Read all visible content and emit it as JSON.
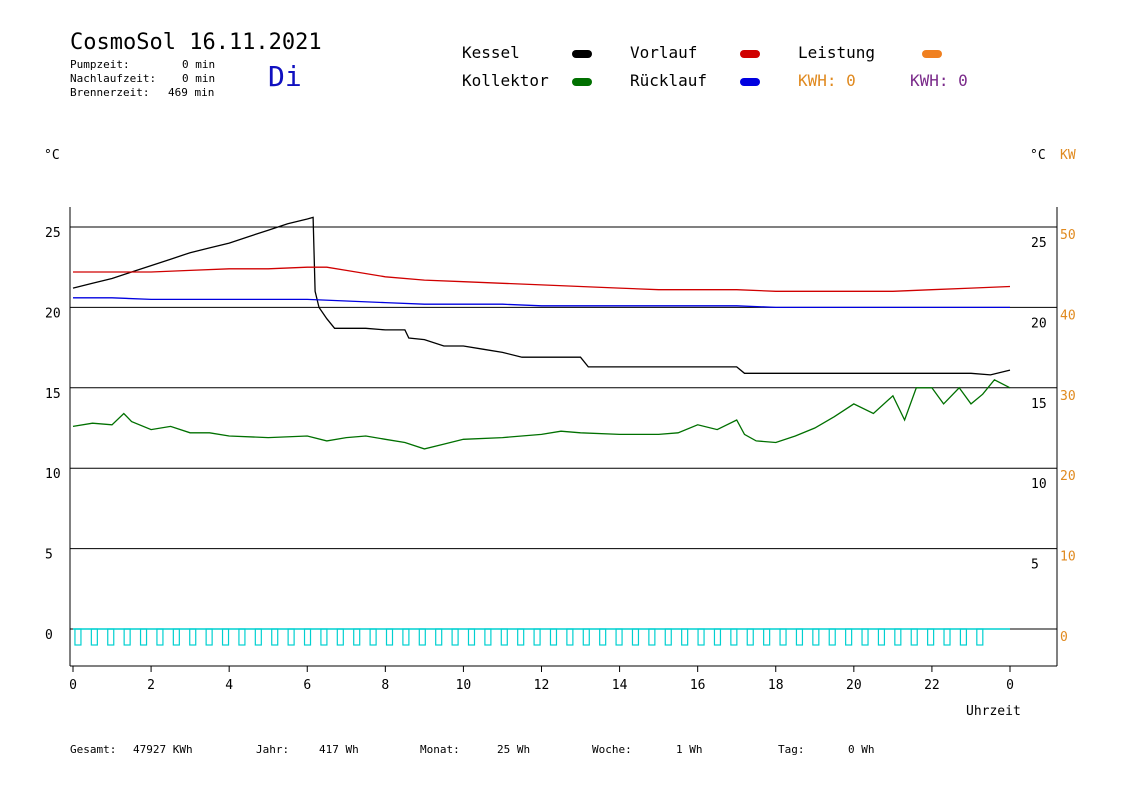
{
  "header": {
    "title": "CosmoSol 16.11.2021",
    "pumpzeit_label": "Pumpzeit:",
    "pumpzeit_value": "0 min",
    "nachlauf_label": "Nachlaufzeit:",
    "nachlauf_value": "0 min",
    "brenner_label": "Brennerzeit:",
    "brenner_value": "469 min",
    "weekday": "Di"
  },
  "legend": {
    "kessel": "Kessel",
    "kollektor": "Kollektor",
    "vorlauf": "Vorlauf",
    "ruecklauf": "Rücklauf",
    "leistung": "Leistung",
    "kwh1": "KWH: 0",
    "kwh2": "KWH: 0"
  },
  "colors": {
    "kessel": "#000000",
    "kollektor": "#007000",
    "vorlauf": "#d00000",
    "ruecklauf": "#0000e0",
    "leistung": "#f08020",
    "pump": "#00d0d0",
    "kwh_orange": "#e08a20",
    "kwh_purple": "#7a2a8a"
  },
  "units": {
    "left": "°C",
    "right_c": "°C",
    "right_kw": "KW",
    "xlabel": "Uhrzeit"
  },
  "footer": {
    "gesamt_label": "Gesamt:",
    "gesamt_value": "47927 KWh",
    "jahr_label": "Jahr:",
    "jahr_value": "417 Wh",
    "monat_label": "Monat:",
    "monat_value": "25 Wh",
    "woche_label": "Woche:",
    "woche_value": "1 Wh",
    "tag_label": "Tag:",
    "tag_value": "0 Wh"
  },
  "chart_data": {
    "type": "line",
    "xlabel": "Uhrzeit",
    "ylabel": "°C",
    "x_ticks": [
      "0",
      "2",
      "4",
      "6",
      "8",
      "10",
      "12",
      "14",
      "16",
      "18",
      "20",
      "22",
      "0"
    ],
    "y_left_ticks": [
      "25",
      "20",
      "15",
      "10",
      "5",
      "0"
    ],
    "y_right_c_ticks": [
      "25",
      "20",
      "15",
      "10",
      "5"
    ],
    "y_right_kw_ticks": [
      "50",
      "40",
      "30",
      "20",
      "10",
      "0"
    ],
    "xlim": [
      0,
      24
    ],
    "ylim": [
      -2,
      26.5
    ],
    "grid": true,
    "series": [
      {
        "name": "Kessel",
        "x": [
          0,
          0.5,
          1,
          1.5,
          2,
          2.5,
          3,
          3.5,
          4,
          4.5,
          5,
          5.5,
          6,
          6.15,
          6.2,
          6.3,
          6.5,
          6.7,
          7,
          7.5,
          8,
          8.5,
          8.6,
          9,
          9.5,
          10,
          10.5,
          11,
          11.5,
          12,
          12.5,
          13,
          13.2,
          14,
          15,
          16,
          17,
          17.2,
          18,
          19,
          20,
          21,
          22,
          23,
          23.5,
          24
        ],
        "y": [
          21.2,
          21.5,
          21.8,
          22.2,
          22.6,
          23.0,
          23.4,
          23.7,
          24.0,
          24.4,
          24.8,
          25.2,
          25.5,
          25.6,
          21.0,
          20.0,
          19.3,
          18.7,
          18.7,
          18.7,
          18.6,
          18.6,
          18.1,
          18.0,
          17.6,
          17.6,
          17.4,
          17.2,
          16.9,
          16.9,
          16.9,
          16.9,
          16.3,
          16.3,
          16.3,
          16.3,
          16.3,
          15.9,
          15.9,
          15.9,
          15.9,
          15.9,
          15.9,
          15.9,
          15.8,
          16.1
        ]
      },
      {
        "name": "Vorlauf",
        "x": [
          0,
          1,
          2,
          3,
          4,
          5,
          6,
          6.5,
          7,
          8,
          9,
          10,
          11,
          12,
          13,
          14,
          15,
          16,
          17,
          18,
          19,
          20,
          21,
          22,
          23,
          24
        ],
        "y": [
          22.2,
          22.2,
          22.2,
          22.3,
          22.4,
          22.4,
          22.5,
          22.5,
          22.3,
          21.9,
          21.7,
          21.6,
          21.5,
          21.4,
          21.3,
          21.2,
          21.1,
          21.1,
          21.1,
          21.0,
          21.0,
          21.0,
          21.0,
          21.1,
          21.2,
          21.3
        ]
      },
      {
        "name": "Rücklauf",
        "x": [
          0,
          1,
          2,
          3,
          4,
          5,
          6,
          7,
          8,
          9,
          10,
          11,
          12,
          13,
          14,
          15,
          16,
          17,
          18,
          19,
          20,
          21,
          22,
          23,
          24
        ],
        "y": [
          20.6,
          20.6,
          20.5,
          20.5,
          20.5,
          20.5,
          20.5,
          20.4,
          20.3,
          20.2,
          20.2,
          20.2,
          20.1,
          20.1,
          20.1,
          20.1,
          20.1,
          20.1,
          20.0,
          20.0,
          20.0,
          20.0,
          20.0,
          20.0,
          20.0
        ]
      },
      {
        "name": "Kollektor",
        "x": [
          0,
          0.5,
          1,
          1.3,
          1.5,
          2,
          2.5,
          3,
          3.5,
          4,
          5,
          6,
          6.5,
          7,
          7.5,
          8,
          8.5,
          9,
          9.5,
          10,
          11,
          12,
          12.5,
          13,
          14,
          15,
          15.5,
          16,
          16.5,
          17,
          17.2,
          17.5,
          18,
          18.5,
          19,
          19.5,
          20,
          20.5,
          21,
          21.3,
          21.6,
          22,
          22.3,
          22.7,
          23,
          23.3,
          23.6,
          24
        ],
        "y": [
          12.6,
          12.8,
          12.7,
          13.4,
          12.9,
          12.4,
          12.6,
          12.2,
          12.2,
          12.0,
          11.9,
          12.0,
          11.7,
          11.9,
          12.0,
          11.8,
          11.6,
          11.2,
          11.5,
          11.8,
          11.9,
          12.1,
          12.3,
          12.2,
          12.1,
          12.1,
          12.2,
          12.7,
          12.4,
          13.0,
          12.1,
          11.7,
          11.6,
          12.0,
          12.5,
          13.2,
          14.0,
          13.4,
          14.5,
          13.0,
          15.0,
          15.0,
          14.0,
          15.0,
          14.0,
          14.6,
          15.5,
          15.0
        ]
      },
      {
        "name": "Leistung",
        "x": [
          0,
          24
        ],
        "y": [
          0,
          0
        ]
      }
    ]
  }
}
